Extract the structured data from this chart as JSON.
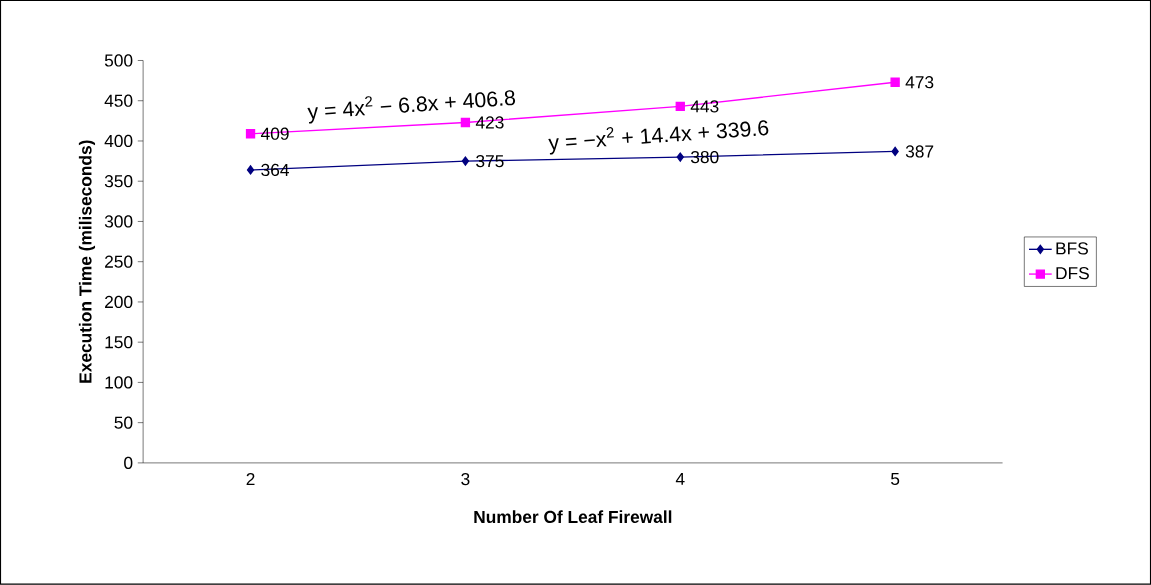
{
  "chart_data": {
    "type": "line",
    "xlabel": "Number Of Leaf Firewall",
    "ylabel": "Execution Time (miliseconds)",
    "categories": [
      "2",
      "3",
      "4",
      "5"
    ],
    "series": [
      {
        "name": "BFS",
        "color": "#000080",
        "marker": "diamond",
        "values": [
          364,
          375,
          380,
          387
        ]
      },
      {
        "name": "DFS",
        "color": "#ff00ff",
        "marker": "square",
        "values": [
          409,
          423,
          443,
          473
        ]
      }
    ],
    "ylim": [
      0,
      500
    ],
    "yticks": [
      0,
      50,
      100,
      150,
      200,
      250,
      300,
      350,
      400,
      450,
      500
    ],
    "data_labels": true,
    "legend": "right",
    "grid": false,
    "annotations": [
      "y = 4x$^{2}$ − 6.8x + 406.8",
      "y = −x$^{2}$ + 14.4x + 339.6"
    ]
  }
}
